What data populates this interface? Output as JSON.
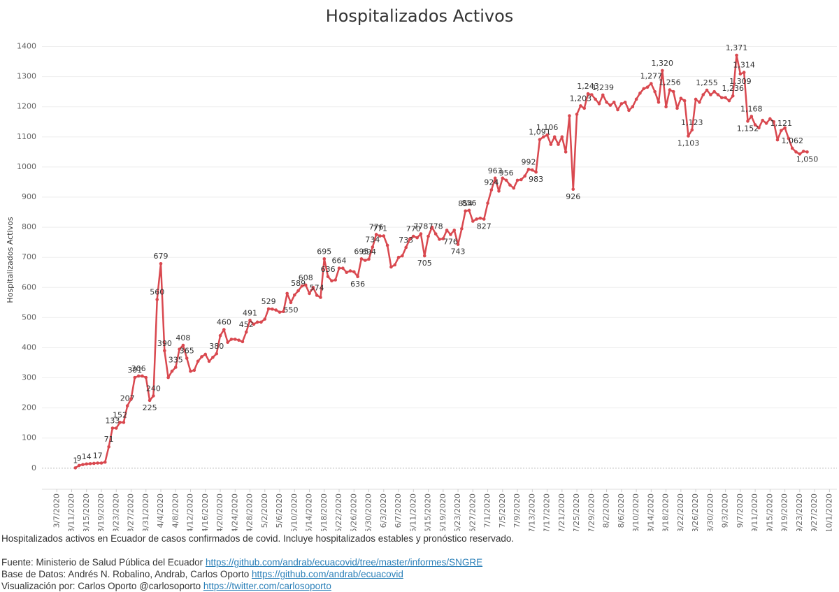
{
  "chart_data": {
    "type": "line",
    "title": "Hospitalizados Activos",
    "y_label": "Hospitalizados Activos",
    "color": "#d9484f",
    "grid": true,
    "x": [
      "3/12/2020",
      "3/13/2020",
      "3/14/2020",
      "3/15/2020",
      "3/16/2020",
      "3/17/2020",
      "3/18/2020",
      "3/19/2020",
      "3/20/2020",
      "3/21/2020",
      "3/22/2020",
      "3/23/2020",
      "3/24/2020",
      "3/25/2020",
      "3/26/2020",
      "3/27/2020",
      "3/28/2020",
      "3/29/2020",
      "3/30/2020",
      "3/31/2020",
      "4/1/2020",
      "4/2/2020",
      "4/3/2020",
      "4/4/2020",
      "4/5/2020",
      "4/6/2020",
      "4/7/2020",
      "4/8/2020",
      "4/9/2020",
      "4/10/2020",
      "4/11/2020",
      "4/12/2020",
      "4/13/2020",
      "4/14/2020",
      "4/15/2020",
      "4/16/2020",
      "4/17/2020",
      "4/18/2020",
      "4/19/2020",
      "4/20/2020",
      "4/21/2020",
      "4/22/2020",
      "4/23/2020",
      "4/24/2020",
      "4/25/2020",
      "4/26/2020",
      "4/27/2020",
      "4/28/2020",
      "4/29/2020",
      "4/30/2020",
      "5/1/2020",
      "5/2/2020",
      "5/3/2020",
      "5/4/2020",
      "5/5/2020",
      "5/6/2020",
      "5/7/2020",
      "5/8/2020",
      "5/9/2020",
      "5/10/2020",
      "5/11/2020",
      "5/12/2020",
      "5/13/2020",
      "5/14/2020",
      "5/15/2020",
      "5/16/2020",
      "5/17/2020",
      "5/18/2020",
      "5/19/2020",
      "5/20/2020",
      "5/21/2020",
      "5/22/2020",
      "5/23/2020",
      "5/24/2020",
      "5/25/2020",
      "5/26/2020",
      "5/27/2020",
      "5/28/2020",
      "5/29/2020",
      "5/30/2020",
      "5/31/2020",
      "6/1/2020",
      "6/2/2020",
      "6/3/2020",
      "6/4/2020",
      "6/5/2020",
      "6/6/2020",
      "6/7/2020",
      "6/8/2020",
      "6/9/2020",
      "6/10/2020",
      "6/11/2020",
      "6/12/2020",
      "6/13/2020",
      "6/14/2020",
      "6/15/2020",
      "6/16/2020",
      "6/17/2020",
      "6/18/2020",
      "6/19/2020",
      "6/20/2020",
      "6/21/2020",
      "6/22/2020",
      "6/23/2020",
      "6/24/2020",
      "6/25/2020",
      "6/26/2020",
      "6/27/2020",
      "6/28/2020",
      "6/29/2020",
      "6/30/2020",
      "7/1/2020",
      "7/2/2020",
      "7/3/2020",
      "7/4/2020",
      "7/5/2020",
      "7/6/2020",
      "7/7/2020",
      "7/8/2020",
      "7/9/2020",
      "7/10/2020",
      "7/11/2020",
      "7/12/2020",
      "7/13/2020",
      "7/14/2020",
      "7/15/2020",
      "7/16/2020",
      "7/17/2020",
      "7/18/2020",
      "7/19/2020",
      "7/20/2020",
      "7/21/2020",
      "7/22/2020",
      "7/23/2020",
      "7/24/2020",
      "7/25/2020",
      "7/26/2020",
      "7/27/2020",
      "7/28/2020",
      "7/29/2020",
      "7/30/2020",
      "7/31/2020",
      "8/1/2020",
      "8/2/2020",
      "8/3/2020",
      "8/4/2020",
      "8/5/2020",
      "8/6/2020",
      "8/7/2020",
      "8/8/2020",
      "8/9/2020",
      "8/10/2020",
      "8/11/2020",
      "8/12/2020",
      "8/13/2020",
      "8/14/2020",
      "8/15/2020",
      "8/16/2020",
      "8/17/2020",
      "8/18/2020",
      "8/19/2020",
      "8/20/2020",
      "8/21/2020",
      "8/22/2020",
      "8/23/2020",
      "8/24/2020",
      "8/25/2020",
      "8/26/2020",
      "8/27/2020",
      "8/28/2020",
      "8/29/2020",
      "8/30/2020",
      "8/31/2020",
      "9/1/2020",
      "9/2/2020",
      "9/3/2020",
      "9/4/2020",
      "9/5/2020",
      "9/6/2020",
      "9/7/2020",
      "9/8/2020",
      "9/9/2020",
      "9/10/2020",
      "9/11/2020",
      "9/12/2020",
      "9/13/2020",
      "9/14/2020",
      "9/15/2020",
      "9/16/2020",
      "9/17/2020",
      "9/18/2020",
      "9/19/2020",
      "9/20/2020",
      "9/21/2020",
      "9/22/2020",
      "9/23/2020",
      "9/24/2020",
      "9/25/2020"
    ],
    "values": [
      1,
      9,
      12,
      14,
      15,
      16,
      17,
      17,
      20,
      71,
      133,
      133,
      152,
      152,
      207,
      230,
      301,
      306,
      306,
      301,
      225,
      240,
      560,
      679,
      390,
      301,
      322,
      335,
      395,
      408,
      365,
      322,
      325,
      355,
      370,
      378,
      355,
      368,
      380,
      440,
      460,
      418,
      428,
      428,
      425,
      420,
      452,
      491,
      478,
      485,
      485,
      495,
      529,
      528,
      525,
      518,
      520,
      580,
      550,
      575,
      589,
      605,
      608,
      580,
      600,
      574,
      567,
      695,
      636,
      622,
      625,
      664,
      664,
      650,
      655,
      652,
      636,
      695,
      690,
      694,
      734,
      776,
      771,
      771,
      740,
      668,
      675,
      700,
      705,
      733,
      760,
      770,
      765,
      778,
      705,
      770,
      800,
      778,
      760,
      762,
      790,
      776,
      790,
      743,
      795,
      854,
      856,
      820,
      827,
      830,
      827,
      880,
      924,
      963,
      920,
      963,
      956,
      940,
      930,
      956,
      958,
      970,
      992,
      990,
      983,
      1091,
      1100,
      1106,
      1075,
      1100,
      1075,
      1100,
      1050,
      1170,
      926,
      1175,
      1203,
      1195,
      1243,
      1240,
      1225,
      1210,
      1239,
      1215,
      1205,
      1215,
      1190,
      1210,
      1215,
      1188,
      1200,
      1225,
      1245,
      1260,
      1265,
      1277,
      1250,
      1215,
      1320,
      1200,
      1256,
      1250,
      1195,
      1228,
      1220,
      1103,
      1123,
      1225,
      1215,
      1240,
      1255,
      1240,
      1250,
      1240,
      1230,
      1230,
      1220,
      1236,
      1371,
      1309,
      1314,
      1152,
      1168,
      1140,
      1130,
      1155,
      1145,
      1160,
      1150,
      1090,
      1121,
      1130,
      1095,
      1062,
      1050,
      1043,
      1052,
      1050
    ],
    "value_labels": [
      "1",
      "9",
      null,
      "14",
      null,
      null,
      "17",
      null,
      null,
      "71",
      "133",
      null,
      "152",
      null,
      "207",
      null,
      "301",
      "306",
      null,
      null,
      "225",
      "240",
      "560",
      "679",
      "390",
      null,
      null,
      "335",
      null,
      "408",
      "365",
      null,
      null,
      null,
      null,
      null,
      null,
      null,
      "380",
      null,
      "460",
      null,
      null,
      null,
      null,
      null,
      "452",
      "491",
      null,
      null,
      null,
      null,
      "529",
      null,
      null,
      null,
      null,
      null,
      "550",
      null,
      "589",
      null,
      "608",
      null,
      null,
      "574",
      null,
      "695",
      "636",
      null,
      null,
      "664",
      null,
      null,
      null,
      null,
      "636",
      "695",
      null,
      "694",
      "734",
      "776",
      "771",
      null,
      null,
      null,
      null,
      null,
      null,
      "733",
      null,
      "770",
      null,
      "778",
      "705",
      null,
      null,
      "778",
      null,
      null,
      null,
      "776",
      null,
      "743",
      null,
      "854",
      "856",
      null,
      null,
      null,
      "827",
      null,
      "924",
      "963",
      null,
      null,
      "956",
      null,
      null,
      null,
      null,
      null,
      "992",
      null,
      "983",
      "1,091",
      null,
      "1,106",
      null,
      null,
      null,
      null,
      null,
      null,
      "926",
      null,
      "1,203",
      null,
      "1,243",
      null,
      null,
      null,
      "1,239",
      null,
      null,
      null,
      null,
      null,
      null,
      null,
      null,
      null,
      null,
      null,
      null,
      "1,277",
      null,
      null,
      "1,320",
      null,
      "1,256",
      null,
      null,
      null,
      null,
      "1,103",
      "1,123",
      null,
      null,
      null,
      "1,255",
      null,
      null,
      null,
      null,
      null,
      null,
      "1,236",
      "1,371",
      "1,309",
      "1,314",
      "1,152",
      "1,168",
      null,
      null,
      null,
      null,
      null,
      null,
      null,
      "1,121",
      null,
      null,
      "1,062",
      null,
      null,
      null,
      "1,050"
    ],
    "xlim": [
      "3/3/2020",
      "10/3/2020"
    ],
    "xticks": [
      "3/7/2020",
      "3/11/2020",
      "3/15/2020",
      "3/19/2020",
      "3/23/2020",
      "3/27/2020",
      "3/31/2020",
      "4/4/2020",
      "4/8/2020",
      "4/12/2020",
      "4/16/2020",
      "4/20/2020",
      "4/24/2020",
      "4/28/2020",
      "5/2/2020",
      "5/6/2020",
      "5/10/2020",
      "5/14/2020",
      "5/18/2020",
      "5/22/2020",
      "5/26/2020",
      "5/30/2020",
      "6/3/2020",
      "6/7/2020",
      "6/11/2020",
      "6/15/2020",
      "6/19/2020",
      "6/23/2020",
      "6/27/2020",
      "7/1/2020",
      "7/5/2020",
      "7/9/2020",
      "7/13/2020",
      "7/17/2020",
      "7/21/2020",
      "7/25/2020",
      "7/29/2020",
      "8/2/2020",
      "8/6/2020",
      "8/10/2020",
      "8/14/2020",
      "8/18/2020",
      "8/22/2020",
      "8/26/2020",
      "8/30/2020",
      "9/3/2020",
      "9/7/2020",
      "9/11/2020",
      "9/15/2020",
      "9/19/2020",
      "9/23/2020",
      "9/27/2020",
      "10/1/2020"
    ],
    "ylim": [
      -70,
      1450
    ],
    "yticks": [
      0,
      100,
      200,
      300,
      400,
      500,
      600,
      700,
      800,
      900,
      1000,
      1100,
      1200,
      1300,
      1400
    ]
  },
  "footer": {
    "description": "Hospitalizados activos en Ecuador de casos confirmados de covid. Incluye hospitalizados estables y pronóstico reservado.",
    "source_text": "Fuente: Ministerio de Salud Pública del Ecuador",
    "source_url": "https://github.com/andrab/ecuacovid/tree/master/informes/SNGRE",
    "database_text": "Base de Datos: Andrés N. Robalino, Andrab, Carlos Oporto",
    "database_url": "https://github.com/andrab/ecuacovid",
    "viz_text": "Visualización por: Carlos Oporto @carlosoporto",
    "viz_url": "https://twitter.com/carlosoporto"
  }
}
